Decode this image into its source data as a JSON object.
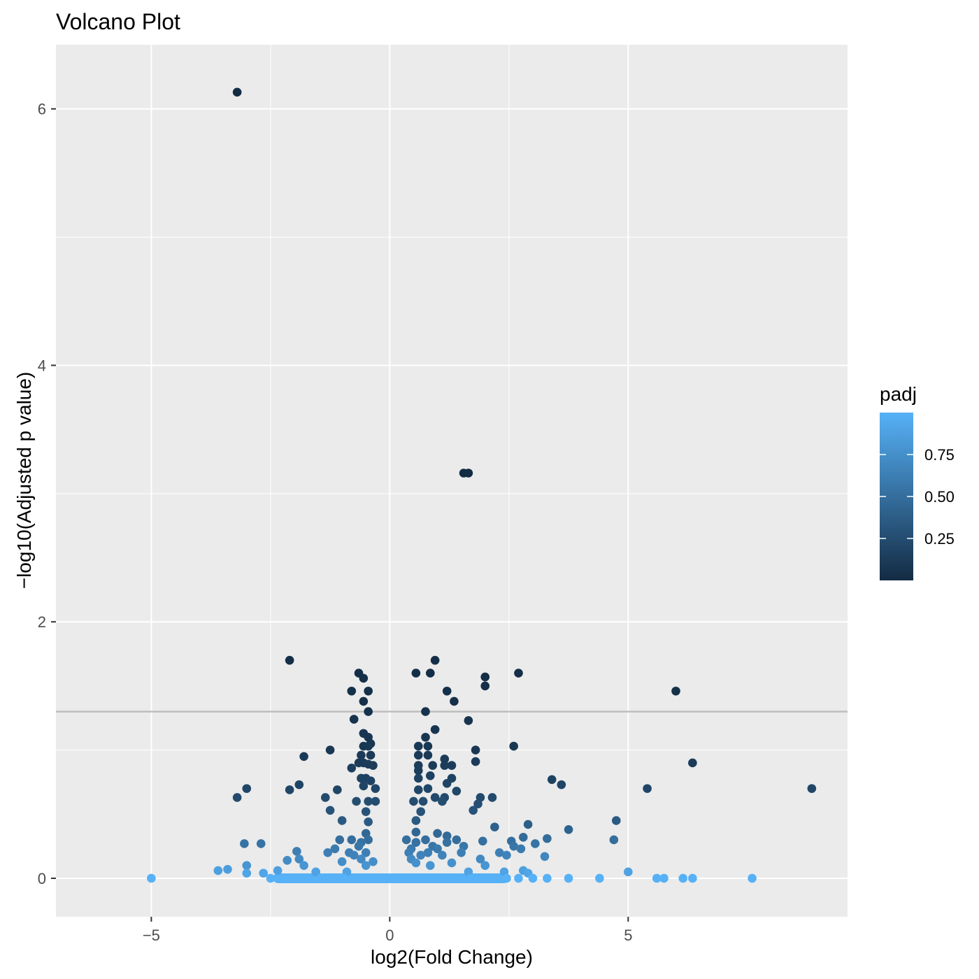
{
  "chart_data": {
    "type": "scatter",
    "title": "Volcano Plot",
    "xlabel": "log2(Fold Change)",
    "ylabel": "−log10(Adjusted p value)",
    "xlim": [
      -7.0,
      9.6
    ],
    "ylim": [
      -0.3,
      6.5
    ],
    "xticks": [
      -5,
      0,
      5
    ],
    "xtick_labels": [
      "−5",
      "0",
      "5"
    ],
    "yticks": [
      0,
      2,
      4,
      6
    ],
    "ytick_labels": [
      "0",
      "2",
      "4",
      "6"
    ],
    "grid": true,
    "background": "#EBEBEB",
    "threshold_line": {
      "y": 1.3,
      "color": "#BEBEBE"
    },
    "legend": {
      "title": "padj",
      "position": "right",
      "range": [
        0.0,
        1.0
      ],
      "ticks": [
        0.25,
        0.5,
        0.75
      ],
      "tick_labels": [
        "0.25",
        "0.50",
        "0.75"
      ],
      "color_low": "#132B43",
      "color_high": "#56B1F7"
    },
    "points_xy": [
      [
        -3.2,
        6.13,
        0.0
      ],
      [
        1.55,
        3.16,
        0.001
      ],
      [
        1.65,
        3.16,
        0.001
      ],
      [
        -2.1,
        1.7,
        0.02
      ],
      [
        0.95,
        1.7,
        0.02
      ],
      [
        -0.65,
        1.6,
        0.025
      ],
      [
        0.55,
        1.6,
        0.025
      ],
      [
        0.85,
        1.6,
        0.025
      ],
      [
        2.7,
        1.6,
        0.025
      ],
      [
        2.0,
        1.57,
        0.027
      ],
      [
        -0.55,
        1.56,
        0.028
      ],
      [
        -0.8,
        1.46,
        0.035
      ],
      [
        -0.45,
        1.46,
        0.035
      ],
      [
        1.2,
        1.46,
        0.035
      ],
      [
        2.0,
        1.5,
        0.032
      ],
      [
        6.0,
        1.46,
        0.035
      ],
      [
        -0.55,
        1.38,
        0.04
      ],
      [
        1.35,
        1.38,
        0.04
      ],
      [
        -0.45,
        1.3,
        0.05
      ],
      [
        0.75,
        1.3,
        0.05
      ],
      [
        -0.75,
        1.24,
        0.058
      ],
      [
        1.65,
        1.23,
        0.06
      ],
      [
        0.95,
        1.16,
        0.07
      ],
      [
        -0.55,
        1.13,
        0.075
      ],
      [
        -0.45,
        1.1,
        0.08
      ],
      [
        0.75,
        1.1,
        0.08
      ],
      [
        -0.4,
        1.05,
        0.09
      ],
      [
        -0.55,
        1.03,
        0.095
      ],
      [
        -0.45,
        1.03,
        0.095
      ],
      [
        0.6,
        1.03,
        0.095
      ],
      [
        0.8,
        1.03,
        0.095
      ],
      [
        2.6,
        1.03,
        0.095
      ],
      [
        -1.25,
        1.0,
        0.1
      ],
      [
        1.8,
        1.0,
        0.1
      ],
      [
        -0.6,
        0.96,
        0.11
      ],
      [
        -0.4,
        0.96,
        0.11
      ],
      [
        0.6,
        0.96,
        0.11
      ],
      [
        0.8,
        0.96,
        0.11
      ],
      [
        -1.8,
        0.95,
        0.11
      ],
      [
        1.15,
        0.93,
        0.12
      ],
      [
        1.8,
        0.91,
        0.12
      ],
      [
        -0.65,
        0.9,
        0.12
      ],
      [
        -0.55,
        0.9,
        0.12
      ],
      [
        -0.45,
        0.89,
        0.13
      ],
      [
        -0.35,
        0.88,
        0.13
      ],
      [
        0.6,
        0.88,
        0.13
      ],
      [
        0.9,
        0.88,
        0.13
      ],
      [
        1.15,
        0.88,
        0.13
      ],
      [
        1.3,
        0.88,
        0.13
      ],
      [
        6.35,
        0.9,
        0.12
      ],
      [
        -0.8,
        0.86,
        0.14
      ],
      [
        0.6,
        0.84,
        0.14
      ],
      [
        0.85,
        0.8,
        0.16
      ],
      [
        -0.6,
        0.78,
        0.17
      ],
      [
        -0.5,
        0.78,
        0.17
      ],
      [
        0.6,
        0.78,
        0.17
      ],
      [
        1.3,
        0.78,
        0.17
      ],
      [
        3.4,
        0.77,
        0.17
      ],
      [
        -0.4,
        0.76,
        0.17
      ],
      [
        1.2,
        0.74,
        0.18
      ],
      [
        3.6,
        0.73,
        0.19
      ],
      [
        -1.9,
        0.73,
        0.19
      ],
      [
        -0.55,
        0.72,
        0.19
      ],
      [
        -0.3,
        0.7,
        0.2
      ],
      [
        0.8,
        0.7,
        0.2
      ],
      [
        0.6,
        0.69,
        0.2
      ],
      [
        1.4,
        0.68,
        0.21
      ],
      [
        5.4,
        0.7,
        0.2
      ],
      [
        8.85,
        0.7,
        0.2
      ],
      [
        -3.0,
        0.7,
        0.2
      ],
      [
        -2.1,
        0.69,
        0.2
      ],
      [
        -1.1,
        0.69,
        0.2
      ],
      [
        -3.2,
        0.63,
        0.23
      ],
      [
        -1.35,
        0.63,
        0.23
      ],
      [
        0.95,
        0.63,
        0.23
      ],
      [
        1.15,
        0.63,
        0.23
      ],
      [
        1.9,
        0.63,
        0.23
      ],
      [
        2.15,
        0.63,
        0.23
      ],
      [
        -0.7,
        0.6,
        0.25
      ],
      [
        -0.45,
        0.6,
        0.25
      ],
      [
        -0.3,
        0.6,
        0.25
      ],
      [
        0.5,
        0.6,
        0.25
      ],
      [
        0.7,
        0.6,
        0.25
      ],
      [
        1.1,
        0.6,
        0.25
      ],
      [
        1.85,
        0.58,
        0.26
      ],
      [
        -1.25,
        0.53,
        0.3
      ],
      [
        1.75,
        0.53,
        0.3
      ],
      [
        -0.5,
        0.52,
        0.3
      ],
      [
        0.65,
        0.52,
        0.3
      ],
      [
        4.75,
        0.45,
        0.35
      ],
      [
        -1.0,
        0.45,
        0.35
      ],
      [
        0.55,
        0.45,
        0.35
      ],
      [
        -0.45,
        0.44,
        0.36
      ],
      [
        2.9,
        0.42,
        0.38
      ],
      [
        2.2,
        0.4,
        0.4
      ],
      [
        3.75,
        0.38,
        0.42
      ],
      [
        0.55,
        0.36,
        0.44
      ],
      [
        -0.5,
        0.35,
        0.45
      ],
      [
        1.0,
        0.35,
        0.45
      ],
      [
        1.2,
        0.33,
        0.47
      ],
      [
        2.8,
        0.32,
        0.48
      ],
      [
        3.3,
        0.31,
        0.49
      ],
      [
        -1.05,
        0.3,
        0.5
      ],
      [
        -0.8,
        0.3,
        0.5
      ],
      [
        -0.45,
        0.3,
        0.5
      ],
      [
        0.35,
        0.3,
        0.5
      ],
      [
        0.75,
        0.3,
        0.5
      ],
      [
        1.4,
        0.3,
        0.5
      ],
      [
        1.95,
        0.29,
        0.51
      ],
      [
        2.55,
        0.29,
        0.51
      ],
      [
        4.7,
        0.3,
        0.5
      ],
      [
        -0.6,
        0.28,
        0.52
      ],
      [
        0.55,
        0.28,
        0.52
      ],
      [
        1.2,
        0.28,
        0.52
      ],
      [
        -3.05,
        0.27,
        0.54
      ],
      [
        -2.7,
        0.27,
        0.54
      ],
      [
        3.05,
        0.27,
        0.54
      ],
      [
        -0.65,
        0.25,
        0.56
      ],
      [
        0.9,
        0.25,
        0.56
      ],
      [
        1.55,
        0.25,
        0.56
      ],
      [
        2.6,
        0.25,
        0.56
      ],
      [
        -1.15,
        0.23,
        0.59
      ],
      [
        0.45,
        0.23,
        0.59
      ],
      [
        1.0,
        0.23,
        0.59
      ],
      [
        2.75,
        0.23,
        0.59
      ],
      [
        -1.95,
        0.21,
        0.62
      ],
      [
        -1.3,
        0.2,
        0.63
      ],
      [
        -0.85,
        0.2,
        0.63
      ],
      [
        -0.5,
        0.2,
        0.63
      ],
      [
        0.4,
        0.2,
        0.63
      ],
      [
        0.8,
        0.2,
        0.63
      ],
      [
        1.5,
        0.2,
        0.63
      ],
      [
        2.3,
        0.2,
        0.63
      ],
      [
        -0.75,
        0.18,
        0.66
      ],
      [
        0.65,
        0.18,
        0.66
      ],
      [
        1.1,
        0.18,
        0.66
      ],
      [
        2.45,
        0.18,
        0.66
      ],
      [
        3.25,
        0.17,
        0.68
      ],
      [
        -1.9,
        0.15,
        0.71
      ],
      [
        -0.6,
        0.15,
        0.71
      ],
      [
        0.45,
        0.15,
        0.71
      ],
      [
        1.9,
        0.15,
        0.71
      ],
      [
        -2.15,
        0.14,
        0.72
      ],
      [
        -1.0,
        0.13,
        0.74
      ],
      [
        -0.35,
        0.13,
        0.74
      ],
      [
        0.55,
        0.12,
        0.76
      ],
      [
        1.3,
        0.12,
        0.76
      ],
      [
        -0.5,
        0.1,
        0.79
      ],
      [
        0.85,
        0.1,
        0.79
      ],
      [
        -3.0,
        0.1,
        0.79
      ],
      [
        -1.8,
        0.1,
        0.79
      ],
      [
        2.0,
        0.1,
        0.79
      ],
      [
        2.8,
        0.06,
        0.87
      ],
      [
        5.0,
        0.05,
        0.89
      ],
      [
        -3.6,
        0.06,
        0.87
      ],
      [
        -3.4,
        0.07,
        0.85
      ],
      [
        -2.35,
        0.06,
        0.87
      ],
      [
        -1.55,
        0.05,
        0.89
      ],
      [
        -0.9,
        0.05,
        0.89
      ],
      [
        1.65,
        0.05,
        0.89
      ],
      [
        2.4,
        0.05,
        0.89
      ],
      [
        -3.0,
        0.04,
        0.91
      ],
      [
        -2.65,
        0.04,
        0.91
      ],
      [
        2.9,
        0.04,
        0.91
      ],
      [
        -5.0,
        0.0,
        1.0
      ],
      [
        -2.5,
        0.0,
        1.0
      ],
      [
        -2.2,
        0.0,
        1.0
      ],
      [
        -1.95,
        0.0,
        1.0
      ],
      [
        -1.7,
        0.0,
        1.0
      ],
      [
        -1.45,
        0.0,
        1.0
      ],
      [
        -1.2,
        0.0,
        1.0
      ],
      [
        -0.95,
        0.0,
        1.0
      ],
      [
        -0.7,
        0.0,
        1.0
      ],
      [
        -0.5,
        0.0,
        1.0
      ],
      [
        -0.3,
        0.0,
        1.0
      ],
      [
        -0.1,
        0.0,
        1.0
      ],
      [
        0.1,
        0.0,
        1.0
      ],
      [
        0.3,
        0.0,
        1.0
      ],
      [
        0.5,
        0.0,
        1.0
      ],
      [
        0.7,
        0.0,
        1.0
      ],
      [
        0.95,
        0.0,
        1.0
      ],
      [
        1.2,
        0.0,
        1.0
      ],
      [
        1.45,
        0.0,
        1.0
      ],
      [
        1.7,
        0.0,
        1.0
      ],
      [
        1.95,
        0.0,
        1.0
      ],
      [
        2.2,
        0.0,
        1.0
      ],
      [
        2.45,
        0.0,
        1.0
      ],
      [
        2.7,
        0.0,
        1.0
      ],
      [
        3.0,
        0.0,
        1.0
      ],
      [
        3.3,
        0.0,
        1.0
      ],
      [
        3.75,
        0.0,
        1.0
      ],
      [
        4.4,
        0.0,
        1.0
      ],
      [
        5.6,
        0.0,
        1.0
      ],
      [
        5.75,
        0.0,
        1.0
      ],
      [
        6.15,
        0.0,
        1.0
      ],
      [
        6.35,
        0.0,
        1.0
      ],
      [
        7.6,
        0.0,
        1.0
      ]
    ]
  }
}
